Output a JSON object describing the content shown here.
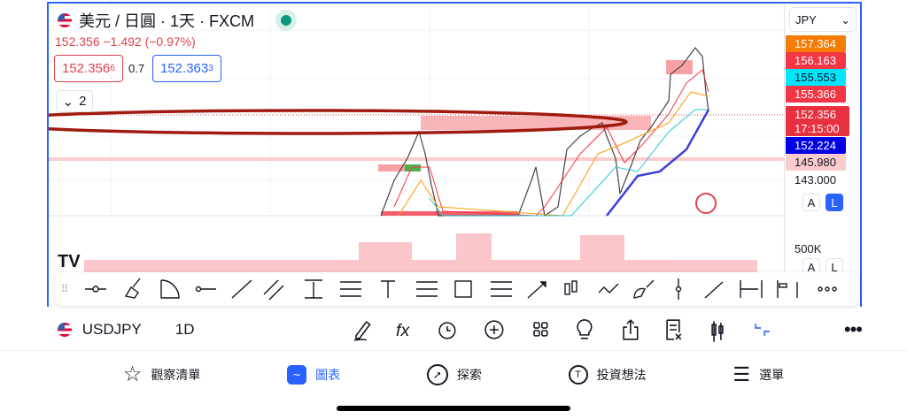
{
  "header": {
    "title": "美元 / 日圓 · 1天 · FXCM",
    "change": "152.356 −1.492 (−0.97%)",
    "sell_price": "152.356",
    "sell_sup": "6",
    "spread": "0.7",
    "buy_price": "152.363",
    "buy_sup": "3",
    "indicators_count": "2"
  },
  "axis": {
    "currency": "JPY",
    "labels": [
      {
        "value": "157.364",
        "bg": "#f57c00",
        "fg": "#ffffff"
      },
      {
        "value": "156.163",
        "bg": "#f23645",
        "fg": "#ffffff"
      },
      {
        "value": "155.553",
        "bg": "#00e5ff",
        "fg": "#131722"
      },
      {
        "value": "155.366",
        "bg": "#f23645",
        "fg": "#ffffff"
      },
      {
        "value": "152.356",
        "bg": "#e8303f",
        "fg": "#ffffff"
      },
      {
        "value": "152.224",
        "bg": "#0000e6",
        "fg": "#ffffff"
      },
      {
        "value": "145.980",
        "bg": "#fccbcd",
        "fg": "#131722"
      }
    ],
    "countdown": "17:15:00",
    "tick": "143.000",
    "auto": "A",
    "log": "L",
    "volume_tick": "500K"
  },
  "toolbar": {
    "tools": [
      "cross-line",
      "highlighter",
      "arc",
      "horizontal-ray",
      "trend-line",
      "parallel-channel",
      "price-range",
      "fib-retracement",
      "text",
      "fib-channel",
      "rectangle",
      "horizontal-lines",
      "arrow",
      "long-position",
      "path",
      "brush",
      "vertical-line",
      "ray",
      "date-range",
      "forecast",
      "more"
    ]
  },
  "bottom": {
    "symbol": "USDJPY",
    "interval": "1D",
    "actions": [
      "draw",
      "indicators",
      "alert",
      "add",
      "layouts",
      "ideas",
      "share",
      "watchlist-remove",
      "chart-type",
      "fullscreen-exit",
      "more"
    ]
  },
  "tabs": [
    {
      "label": "觀察清單",
      "icon": "star"
    },
    {
      "label": "圖表",
      "icon": "chart",
      "active": true
    },
    {
      "label": "探索",
      "icon": "compass"
    },
    {
      "label": "投資想法",
      "icon": "bulb"
    },
    {
      "label": "選單",
      "icon": "menu"
    }
  ],
  "colors": {
    "accent": "#2962ff",
    "down": "#e0434f"
  }
}
